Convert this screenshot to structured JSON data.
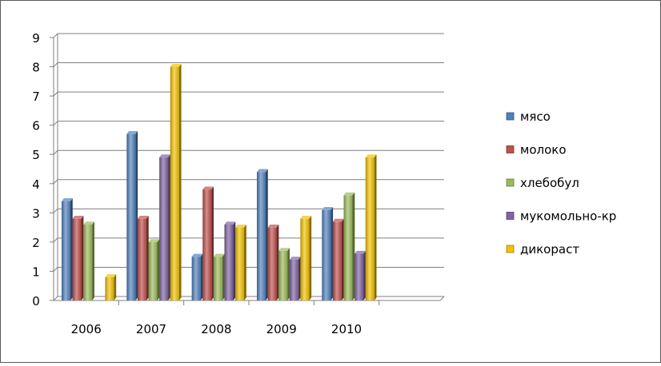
{
  "chart_data": {
    "type": "bar",
    "title": "",
    "xlabel": "",
    "ylabel": "",
    "ylim": [
      0,
      9
    ],
    "yticks": [
      "0",
      "1",
      "2",
      "3",
      "4",
      "5",
      "6",
      "7",
      "8",
      "9"
    ],
    "grid": true,
    "legend_position": "right",
    "categories": [
      "2006",
      "2007",
      "2008",
      "2009",
      "2010",
      ""
    ],
    "series": [
      {
        "name": "мясо",
        "color": "#4f81bd",
        "values": [
          3.4,
          5.7,
          1.5,
          4.4,
          3.1,
          null
        ]
      },
      {
        "name": "молоко",
        "color": "#c0504d",
        "values": [
          2.8,
          2.8,
          3.8,
          2.5,
          2.7,
          null
        ]
      },
      {
        "name": "хлебобул",
        "color": "#9bbb59",
        "values": [
          2.6,
          2.0,
          1.5,
          1.7,
          3.6,
          null
        ]
      },
      {
        "name": "мукомольно-кр",
        "color": "#8064a2",
        "values": [
          null,
          4.9,
          2.6,
          1.4,
          1.6,
          null
        ]
      },
      {
        "name": "дикораст",
        "color": "#f2c200",
        "values": [
          0.8,
          8.0,
          2.5,
          2.8,
          4.9,
          null
        ]
      }
    ]
  }
}
